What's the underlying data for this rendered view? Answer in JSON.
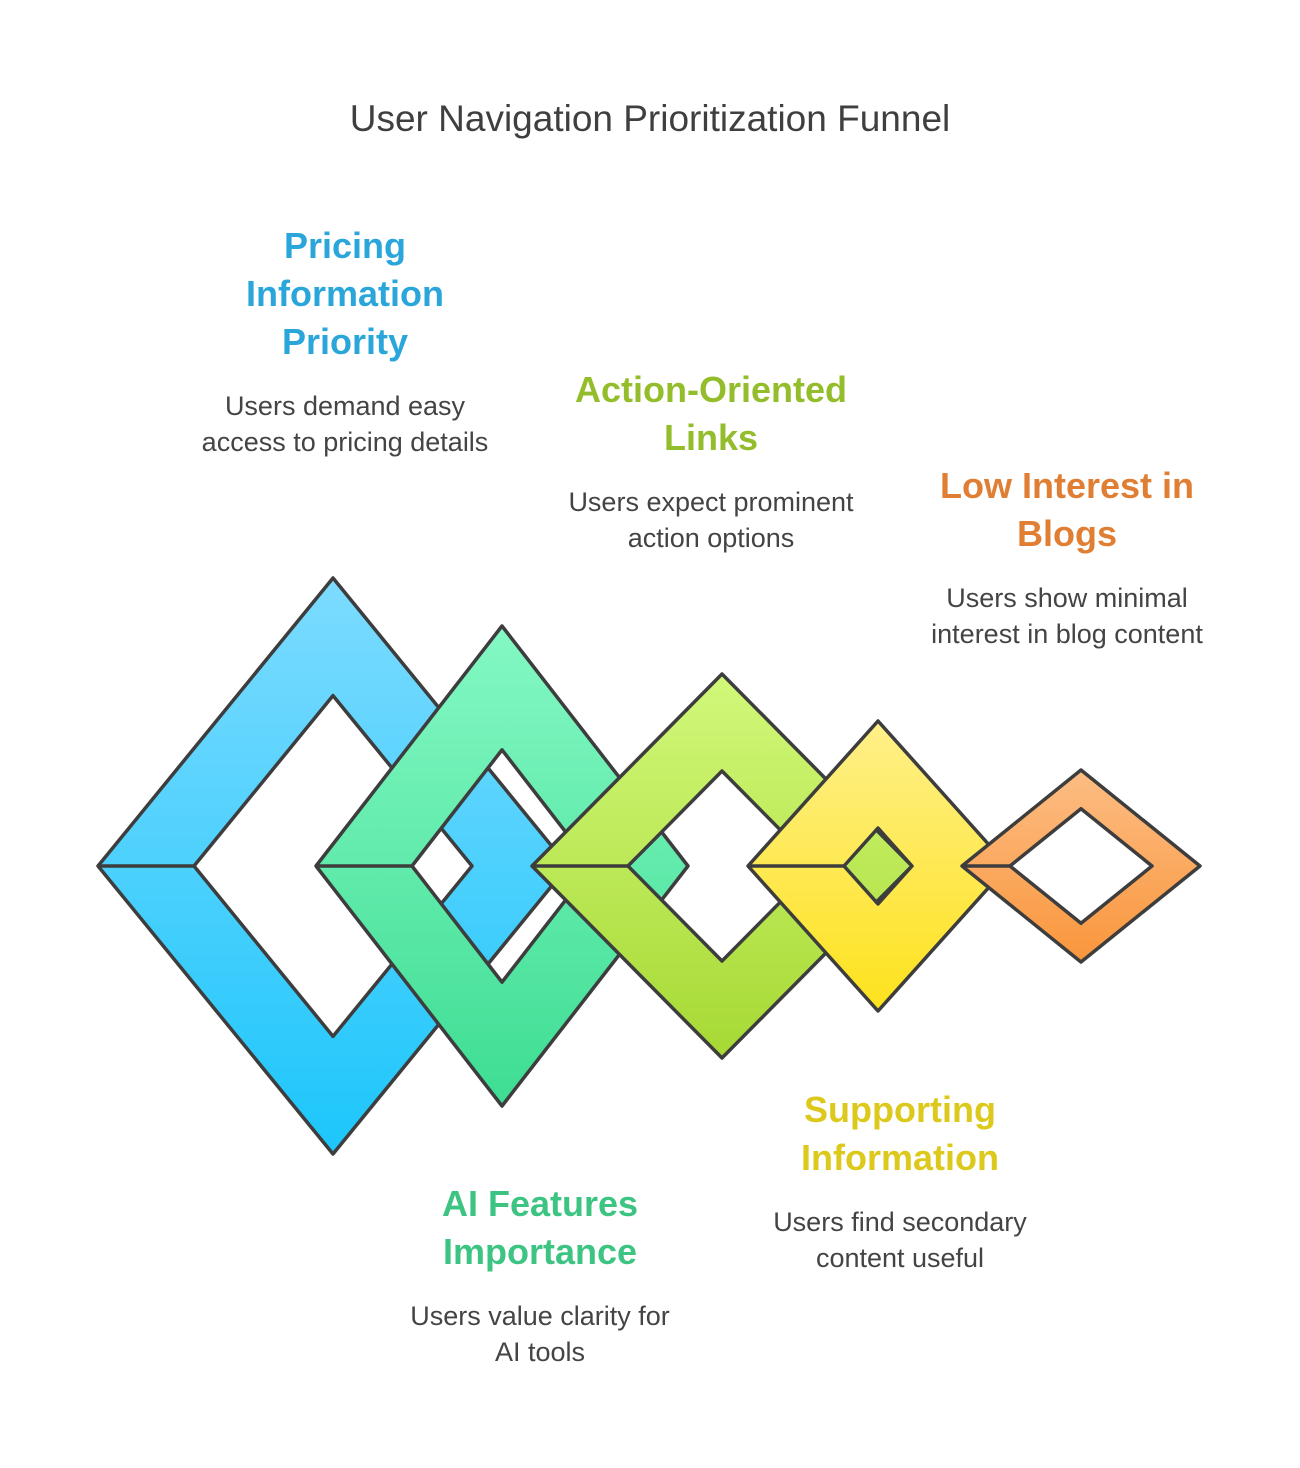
{
  "title": "User Navigation Prioritization Funnel",
  "stages": [
    {
      "name": "Pricing Information Priority",
      "description": "Users demand easy access to pricing details",
      "color": "#2aa6da",
      "fill_top": "#7ddbff",
      "fill_bottom": "#1cc6fb"
    },
    {
      "name": "AI Features Importance",
      "description": "Users value clarity for AI tools",
      "color": "#3dc482",
      "fill_top": "#84f8c4",
      "fill_bottom": "#3edd93"
    },
    {
      "name": "Action-Oriented Links",
      "description": "Users expect prominent action options",
      "color": "#93bd2b",
      "fill_top": "#d2f87a",
      "fill_bottom": "#a6d934"
    },
    {
      "name": "Supporting Information",
      "description": "Users find secondary content useful",
      "color": "#dcc91c",
      "fill_top": "#fff08a",
      "fill_bottom": "#fde21c"
    },
    {
      "name": "Low Interest in Blogs",
      "description": "Users show minimal interest in blog content",
      "color": "#e07f34",
      "fill_top": "#fdbd84",
      "fill_bottom": "#f9963c"
    }
  ]
}
